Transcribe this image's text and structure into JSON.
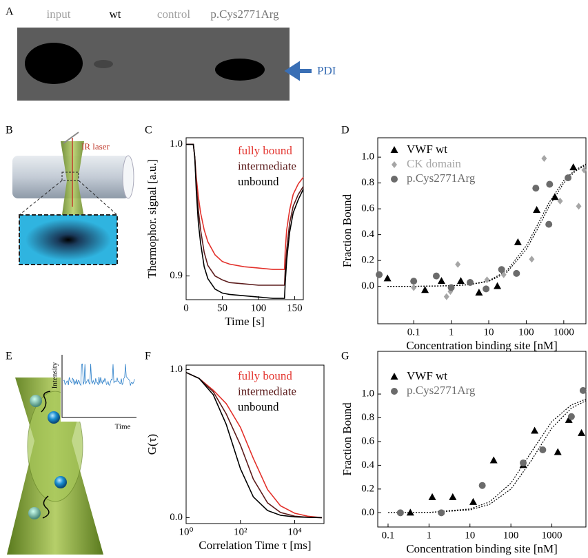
{
  "panel_labels": [
    "A",
    "B",
    "C",
    "D",
    "E",
    "F",
    "G"
  ],
  "blot": {
    "lanes": [
      "input",
      "wt",
      "control",
      "p.Cys2771Arg"
    ],
    "marker": "PDI"
  },
  "diagram_b": {
    "laser": "IR laser"
  },
  "diagram_e": {
    "ylabel": "Intensity",
    "xlabel": "Time"
  },
  "chart_data": [
    {
      "type": "line",
      "xlabel": "Time [s]",
      "ylabel": "Thermophor. signal [a.u.]",
      "x": [
        0,
        5,
        10,
        12,
        14,
        17,
        20,
        25,
        30,
        40,
        50,
        60,
        80,
        100,
        120,
        136,
        137,
        139,
        143,
        148,
        155,
        162
      ],
      "xlim": [
        0,
        162
      ],
      "xticks": [
        0,
        50,
        100,
        150
      ],
      "ylim": [
        0.882,
        1.005
      ],
      "yticks": [
        0.9,
        {
          "value": 1,
          "label": "1.0"
        }
      ],
      "series": [
        {
          "name": "fully bound",
          "color": "#e3312b",
          "values": [
            1.0,
            1.0,
            1.0,
            0.99,
            0.975,
            0.96,
            0.948,
            0.935,
            0.926,
            0.916,
            0.911,
            0.909,
            0.907,
            0.906,
            0.905,
            0.905,
            0.92,
            0.935,
            0.95,
            0.962,
            0.97,
            0.975
          ]
        },
        {
          "name": "intermediate",
          "color": "#5c1c1c",
          "values": [
            1.0,
            1.0,
            1.0,
            0.99,
            0.97,
            0.95,
            0.935,
            0.918,
            0.908,
            0.9,
            0.897,
            0.895,
            0.894,
            0.893,
            0.893,
            0.893,
            0.905,
            0.92,
            0.94,
            0.953,
            0.962,
            0.968
          ]
        },
        {
          "name": "unbound",
          "color": "#000000",
          "values": [
            1.0,
            1.0,
            1.0,
            0.99,
            0.965,
            0.94,
            0.925,
            0.907,
            0.898,
            0.89,
            0.887,
            0.886,
            0.885,
            0.884,
            0.883,
            0.883,
            0.895,
            0.912,
            0.933,
            0.948,
            0.958,
            0.966
          ]
        }
      ]
    },
    {
      "type": "scatter",
      "xlabel": "Concentration binding site [nM]",
      "ylabel": "Fraction Bound",
      "xscale": "log",
      "xlim": [
        0.011,
        3900
      ],
      "xticks": [
        0.1,
        1,
        10,
        100,
        1000
      ],
      "ylim": [
        -0.29,
        1.15
      ],
      "yticks": [
        {
          "value": 0,
          "label": "0.0"
        },
        0.2,
        0.4,
        0.6,
        0.8,
        {
          "value": 1,
          "label": "1.0"
        }
      ],
      "series": [
        {
          "name": "VWF wt",
          "color": "#000000",
          "marker": "triangle",
          "x": [
            0.02,
            0.2,
            0.55,
            1.8,
            5.5,
            17,
            60,
            190,
            580,
            1800
          ],
          "values": [
            0.06,
            -0.03,
            0.04,
            0.04,
            -0.05,
            0.0,
            0.34,
            0.59,
            0.69,
            0.92
          ]
        },
        {
          "name": "CK domain",
          "color": "#a6a6a6",
          "marker": "diamond",
          "x": [
            0.1,
            0.75,
            0.95,
            1.5,
            9,
            25,
            140,
            300,
            800,
            2500,
            3500
          ],
          "values": [
            -0.01,
            -0.08,
            -0.04,
            0.17,
            0.05,
            0.09,
            0.21,
            0.99,
            0.66,
            0.62,
            0.9
          ]
        },
        {
          "name": "p.Cys2771Arg",
          "color": "#6b6b6b",
          "marker": "circle",
          "x": [
            0.012,
            0.1,
            0.4,
            1,
            3.2,
            8.5,
            22,
            55,
            180,
            400,
            420,
            1300
          ],
          "values": [
            0.09,
            0.04,
            0.08,
            -0.01,
            0.03,
            -0.02,
            0.13,
            0.1,
            0.76,
            0.48,
            0.79,
            0.84
          ]
        }
      ],
      "fits": [
        {
          "x": [
            0.02,
            0.1,
            1,
            3,
            10,
            30,
            100,
            200,
            400,
            1000,
            2000,
            3900
          ],
          "values": [
            0,
            0,
            0.004,
            0.012,
            0.038,
            0.107,
            0.286,
            0.444,
            0.615,
            0.8,
            0.889,
            0.94
          ]
        },
        {
          "x": [
            0.02,
            0.1,
            1,
            3,
            10,
            30,
            100,
            200,
            400,
            1000,
            2000,
            3900
          ],
          "values": [
            0,
            0,
            0.005,
            0.013,
            0.043,
            0.12,
            0.313,
            0.476,
            0.645,
            0.82,
            0.9,
            0.947
          ]
        }
      ]
    },
    {
      "type": "line",
      "xlabel": "Correlation Time τ [ms]",
      "ylabel": "G(τ)",
      "xscale": "log",
      "x": [
        1,
        3,
        10,
        30,
        100,
        300,
        1000,
        3000,
        10000,
        30000,
        100000
      ],
      "xlim": [
        1,
        120000
      ],
      "xticks": [
        {
          "value": 1,
          "label": "10⁰"
        },
        {
          "value": 100,
          "label": "10²"
        },
        {
          "value": 10000,
          "label": "10⁴"
        }
      ],
      "ylim": [
        -0.04,
        1.03
      ],
      "yticks": [
        {
          "value": 0,
          "label": "0.0"
        },
        {
          "value": 1,
          "label": "1.0"
        }
      ],
      "series": [
        {
          "name": "fully bound",
          "color": "#e3312b",
          "values": [
            0.98,
            0.94,
            0.86,
            0.77,
            0.61,
            0.4,
            0.19,
            0.08,
            0.03,
            0.01,
            0
          ]
        },
        {
          "name": "intermediate",
          "color": "#5c1c1c",
          "values": [
            0.98,
            0.94,
            0.85,
            0.7,
            0.49,
            0.26,
            0.1,
            0.035,
            0.01,
            0.003,
            0
          ]
        },
        {
          "name": "unbound",
          "color": "#000000",
          "values": [
            0.98,
            0.94,
            0.83,
            0.63,
            0.33,
            0.14,
            0.048,
            0.016,
            0.005,
            0.002,
            0
          ]
        }
      ]
    },
    {
      "type": "scatter",
      "xlabel": "Concentration binding site [nM]",
      "ylabel": "Fraction Bound",
      "xscale": "log",
      "xlim": [
        0.056,
        6800
      ],
      "xticks": [
        0.1,
        1,
        10,
        100,
        1000
      ],
      "ylim": [
        -0.12,
        1.36
      ],
      "yticks": [
        {
          "value": 0,
          "label": "0.0"
        },
        0.2,
        0.4,
        0.6,
        0.8,
        {
          "value": 1,
          "label": "1.0"
        }
      ],
      "series": [
        {
          "name": "VWF wt",
          "color": "#000000",
          "marker": "triangle",
          "x": [
            0.35,
            1.2,
            3.8,
            12,
            38,
            200,
            380,
            1400,
            2600,
            5300
          ],
          "values": [
            0.0,
            0.13,
            0.13,
            0.09,
            0.44,
            0.4,
            0.69,
            0.51,
            0.78,
            0.67
          ]
        },
        {
          "name": "p.Cys2771Arg",
          "color": "#6b6b6b",
          "marker": "circle",
          "x": [
            0.2,
            2,
            20,
            200,
            600,
            3000,
            5800
          ],
          "values": [
            0.0,
            0.0,
            0.23,
            0.42,
            0.53,
            0.81,
            1.03
          ]
        }
      ],
      "fits": [
        {
          "x": [
            0.1,
            1,
            10,
            30,
            100,
            300,
            1000,
            3000,
            6800
          ],
          "values": [
            0,
            0.003,
            0.032,
            0.091,
            0.25,
            0.5,
            0.769,
            0.909,
            0.958
          ]
        },
        {
          "x": [
            0.1,
            1,
            10,
            30,
            100,
            300,
            1000,
            3000,
            6800
          ],
          "values": [
            0,
            0.002,
            0.024,
            0.07,
            0.2,
            0.429,
            0.714,
            0.882,
            0.944
          ]
        }
      ]
    }
  ]
}
